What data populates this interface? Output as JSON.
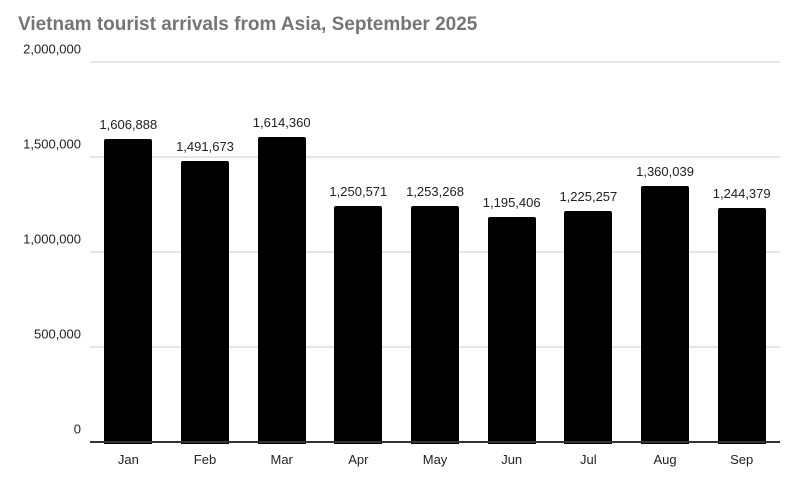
{
  "title": "Vietnam tourist arrivals from Asia, September 2025",
  "colors": {
    "bar": "#000000",
    "title": "#757575",
    "gridline": "#e6e6e6",
    "axis_line": "#333333",
    "value_label": "#212121",
    "tick_label": "#222222",
    "background": "#ffffff"
  },
  "chart_data": {
    "type": "bar",
    "title": "Vietnam tourist arrivals from Asia, September 2025",
    "categories": [
      "Jan",
      "Feb",
      "Mar",
      "Apr",
      "May",
      "Jun",
      "Jul",
      "Aug",
      "Sep"
    ],
    "values": [
      1606888,
      1491673,
      1614360,
      1250571,
      1253268,
      1195406,
      1225257,
      1360039,
      1244379
    ],
    "value_labels": [
      "1,606,888",
      "1,491,673",
      "1,614,360",
      "1,250,571",
      "1,253,268",
      "1,195,406",
      "1,225,257",
      "1,360,039",
      "1,244,379"
    ],
    "xlabel": "",
    "ylabel": "",
    "ylim": [
      0,
      2000000
    ],
    "y_ticks": [
      0,
      500000,
      1000000,
      1500000,
      2000000
    ],
    "y_tick_labels": [
      "0",
      "500,000",
      "1,000,000",
      "1,500,000",
      "2,000,000"
    ],
    "grid": true,
    "legend_position": "none"
  }
}
